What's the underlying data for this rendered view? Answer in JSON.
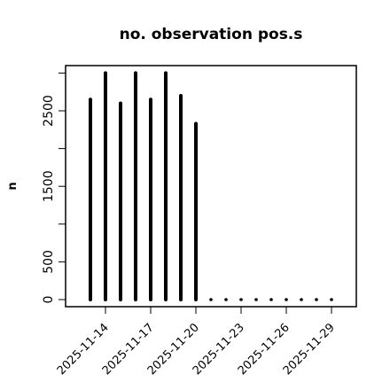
{
  "chart_data": {
    "type": "bar",
    "title": "no. observation pos.s",
    "xlabel": "",
    "ylabel": "n",
    "ylim": [
      0,
      3000
    ],
    "y_ticks": [
      0,
      500,
      1500,
      2500
    ],
    "x": [
      "2025-11-13",
      "2025-11-14",
      "2025-11-15",
      "2025-11-16",
      "2025-11-17",
      "2025-11-18",
      "2025-11-19",
      "2025-11-20",
      "2025-11-21",
      "2025-11-22",
      "2025-11-23",
      "2025-11-24",
      "2025-11-25",
      "2025-11-26",
      "2025-11-27",
      "2025-11-28",
      "2025-11-29"
    ],
    "values": [
      2650,
      3000,
      2600,
      3000,
      2650,
      3000,
      2700,
      2330,
      0,
      0,
      0,
      0,
      0,
      0,
      0,
      0,
      0
    ],
    "x_tick_labels": [
      "2025-11-14",
      "2025-11-17",
      "2025-11-20",
      "2025-11-23",
      "2025-11-26",
      "2025-11-29"
    ],
    "x_tick_colors": [
      "#000000",
      "#000000",
      "#228B22",
      "#000000",
      "#000000",
      "#000000"
    ],
    "bar_color": "#000000"
  }
}
